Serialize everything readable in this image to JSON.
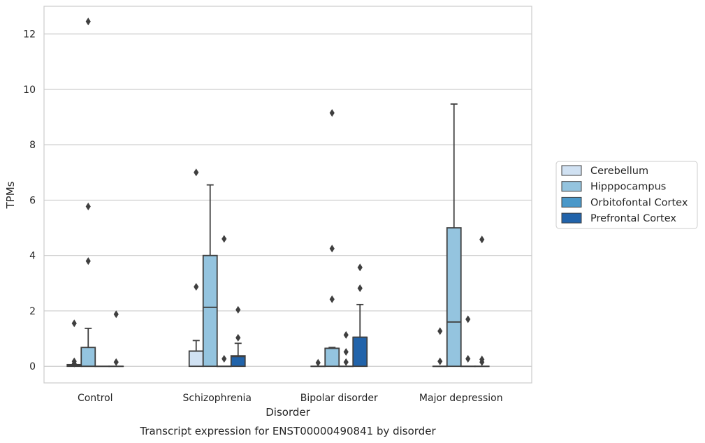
{
  "chart_data": {
    "type": "box",
    "title": "Transcript expression for ENST00000490841 by disorder",
    "xlabel": "Disorder",
    "ylabel": "TPMs",
    "ylim": [
      -0.6,
      13.0
    ],
    "yticks": [
      0,
      2,
      4,
      6,
      8,
      10,
      12
    ],
    "grid": true,
    "legend_position": "right",
    "categories": [
      "Control",
      "Schizophrenia",
      "Bipolar disorder",
      "Major depression"
    ],
    "series": [
      {
        "name": "Cerebellum",
        "color": "#d0e1f2",
        "boxes": [
          {
            "q1": 0,
            "median": 0.02,
            "q3": 0.06,
            "whisker_low": 0,
            "whisker_high": 0.06,
            "outliers": [
              0.1,
              0.18,
              1.55
            ]
          },
          {
            "q1": 0,
            "median": 0.55,
            "q3": 0.55,
            "whisker_low": 0,
            "whisker_high": 0.93,
            "outliers": [
              2.87,
              7.0
            ]
          },
          {
            "q1": 0,
            "median": 0,
            "q3": 0,
            "whisker_low": 0,
            "whisker_high": 0,
            "outliers": [
              0.13
            ]
          },
          {
            "q1": 0,
            "median": 0,
            "q3": 0,
            "whisker_low": 0,
            "whisker_high": 0,
            "outliers": [
              0.18,
              1.27
            ]
          }
        ]
      },
      {
        "name": "Hipppocampus",
        "color": "#94c4df",
        "boxes": [
          {
            "q1": 0,
            "median": 0,
            "q3": 0.68,
            "whisker_low": 0,
            "whisker_high": 1.37,
            "outliers": [
              3.8,
              5.77,
              12.45
            ]
          },
          {
            "q1": 0,
            "median": 2.13,
            "q3": 4.0,
            "whisker_low": 0,
            "whisker_high": 6.55,
            "outliers": []
          },
          {
            "q1": 0,
            "median": 0.65,
            "q3": 0.65,
            "whisker_low": 0,
            "whisker_high": 0.68,
            "outliers": [
              2.42,
              4.25,
              9.15
            ]
          },
          {
            "q1": 0,
            "median": 1.6,
            "q3": 5.0,
            "whisker_low": 0,
            "whisker_high": 9.47,
            "outliers": []
          }
        ]
      },
      {
        "name": "Orbitofontal Cortex",
        "color": "#4a98c9",
        "boxes": [
          {
            "q1": 0,
            "median": 0,
            "q3": 0,
            "whisker_low": 0,
            "whisker_high": 0,
            "outliers": []
          },
          {
            "q1": 0,
            "median": 0,
            "q3": 0,
            "whisker_low": 0,
            "whisker_high": 0,
            "outliers": [
              0.27,
              4.6
            ]
          },
          {
            "q1": 0,
            "median": 0,
            "q3": 0,
            "whisker_low": 0,
            "whisker_high": 0,
            "outliers": [
              0.15,
              0.52,
              1.13
            ]
          },
          {
            "q1": 0,
            "median": 0,
            "q3": 0,
            "whisker_low": 0,
            "whisker_high": 0,
            "outliers": [
              0.27,
              1.7
            ]
          }
        ]
      },
      {
        "name": "Prefrontal Cortex",
        "color": "#2163aa",
        "boxes": [
          {
            "q1": 0,
            "median": 0,
            "q3": 0,
            "whisker_low": 0,
            "whisker_high": 0,
            "outliers": [
              0.15,
              1.88
            ]
          },
          {
            "q1": 0,
            "median": 0.35,
            "q3": 0.38,
            "whisker_low": 0,
            "whisker_high": 0.83,
            "outliers": [
              1.03,
              2.04
            ]
          },
          {
            "q1": 0,
            "median": 1.05,
            "q3": 1.05,
            "whisker_low": 0,
            "whisker_high": 2.23,
            "outliers": [
              2.82,
              3.57
            ]
          },
          {
            "q1": 0,
            "median": 0,
            "q3": 0,
            "whisker_low": 0,
            "whisker_high": 0,
            "outliers": [
              0.15,
              0.25,
              4.58
            ]
          }
        ]
      }
    ]
  }
}
